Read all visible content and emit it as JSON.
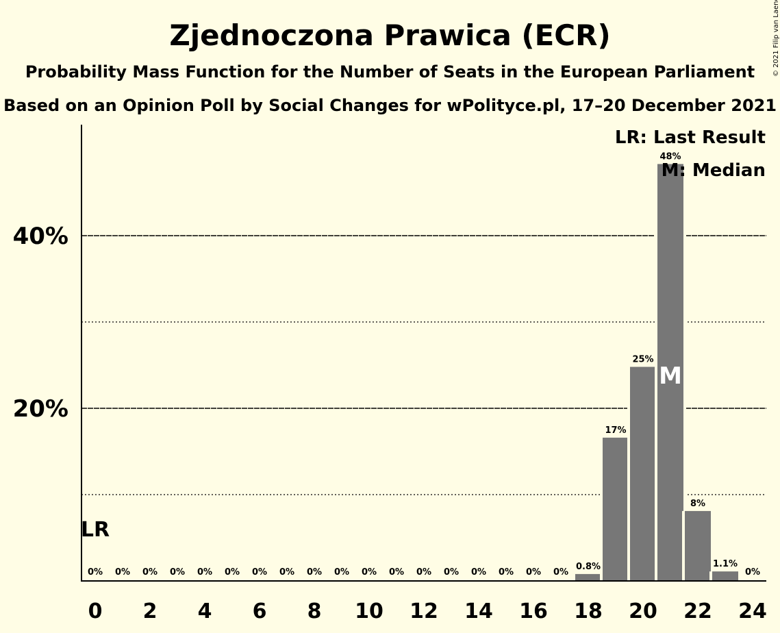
{
  "title": "Zjednoczona Prawica (ECR)",
  "subtitle1": "Probability Mass Function for the Number of Seats in the European Parliament",
  "subtitle2": "Based on an Opinion Poll by Social Changes for wPolityce.pl, 17–20 December 2021",
  "copyright": "© 2021 Filip van Laenen",
  "legend": {
    "last_result": "LR: Last Result",
    "median": "M: Median"
  },
  "colors": {
    "background": "#fffde5",
    "bar": "#777777",
    "axis": "#000000"
  },
  "chart_data": {
    "type": "bar",
    "x": [
      0,
      1,
      2,
      3,
      4,
      5,
      6,
      7,
      8,
      9,
      10,
      11,
      12,
      13,
      14,
      15,
      16,
      17,
      18,
      19,
      20,
      21,
      22,
      23,
      24
    ],
    "values": [
      0,
      0,
      0,
      0,
      0,
      0,
      0,
      0,
      0,
      0,
      0,
      0,
      0,
      0,
      0,
      0,
      0,
      0,
      0.8,
      16.6,
      24.8,
      48.3,
      8.1,
      1.1,
      0
    ],
    "labels": [
      "0%",
      "0%",
      "0%",
      "0%",
      "0%",
      "0%",
      "0%",
      "0%",
      "0%",
      "0%",
      "0%",
      "0%",
      "0%",
      "0%",
      "0%",
      "0%",
      "0%",
      "0%",
      "0.8%",
      "17%",
      "25%",
      "48%",
      "8%",
      "1.1%",
      "0%"
    ],
    "x_tick_labels": [
      "0",
      "2",
      "4",
      "6",
      "8",
      "10",
      "12",
      "14",
      "16",
      "18",
      "20",
      "22",
      "24"
    ],
    "y_tick_labels": [
      "20%",
      "40%"
    ],
    "y_major_ticks": [
      20,
      40
    ],
    "y_minor_ticks": [
      10,
      30
    ],
    "ylim": [
      0,
      52.5
    ],
    "grid": true,
    "last_result_seat": 0,
    "last_result_label": "LR",
    "median_seat": 21,
    "median_label": "M",
    "legend_position": "top-right"
  }
}
